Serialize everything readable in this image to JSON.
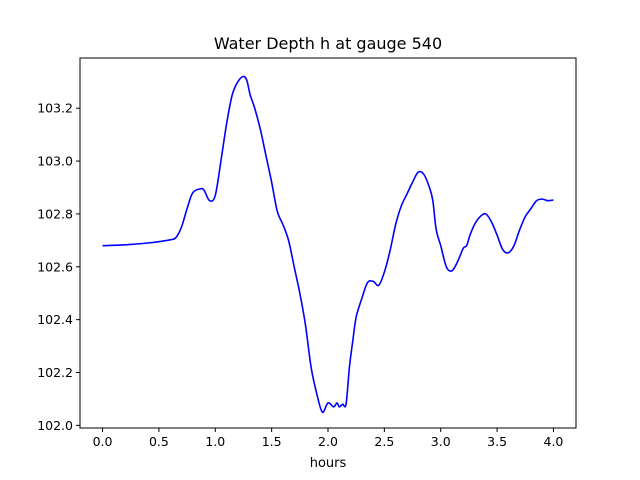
{
  "chart_data": {
    "type": "line",
    "title": "Water Depth h at gauge 540",
    "xlabel": "hours",
    "ylabel": "",
    "xlim": [
      -0.2,
      4.2
    ],
    "ylim": [
      101.99,
      103.39
    ],
    "xticks": [
      0.0,
      0.5,
      1.0,
      1.5,
      2.0,
      2.5,
      3.0,
      3.5,
      4.0
    ],
    "xtick_labels": [
      "0.0",
      "0.5",
      "1.0",
      "1.5",
      "2.0",
      "2.5",
      "3.0",
      "3.5",
      "4.0"
    ],
    "yticks": [
      102.0,
      102.2,
      102.4,
      102.6,
      102.8,
      103.0,
      103.2
    ],
    "ytick_labels": [
      "102.0",
      "102.2",
      "102.4",
      "102.6",
      "102.8",
      "103.0",
      "103.2"
    ],
    "grid": false,
    "legend": "none",
    "series": [
      {
        "color": "#0000ff",
        "x": [
          0.0,
          0.2,
          0.4,
          0.5,
          0.6,
          0.65,
          0.7,
          0.75,
          0.8,
          0.87,
          0.9,
          0.95,
          1.0,
          1.05,
          1.1,
          1.15,
          1.2,
          1.25,
          1.28,
          1.31,
          1.35,
          1.4,
          1.45,
          1.5,
          1.55,
          1.6,
          1.65,
          1.7,
          1.75,
          1.8,
          1.85,
          1.9,
          1.95,
          2.0,
          2.05,
          2.08,
          2.1,
          2.13,
          2.16,
          2.19,
          2.22,
          2.25,
          2.3,
          2.35,
          2.4,
          2.45,
          2.5,
          2.55,
          2.6,
          2.65,
          2.7,
          2.75,
          2.8,
          2.85,
          2.9,
          2.93,
          2.96,
          3.0,
          3.05,
          3.1,
          3.15,
          3.2,
          3.23,
          3.26,
          3.3,
          3.35,
          3.4,
          3.45,
          3.5,
          3.55,
          3.6,
          3.65,
          3.7,
          3.75,
          3.8,
          3.85,
          3.9,
          3.95,
          4.0
        ],
        "y": [
          102.68,
          102.683,
          102.69,
          102.695,
          102.702,
          102.71,
          102.75,
          102.82,
          102.88,
          102.895,
          102.89,
          102.85,
          102.87,
          103.0,
          103.14,
          103.25,
          103.3,
          103.32,
          103.305,
          103.25,
          103.2,
          103.12,
          103.02,
          102.92,
          102.81,
          102.76,
          102.7,
          102.6,
          102.5,
          102.38,
          102.22,
          102.12,
          102.05,
          102.085,
          102.07,
          102.085,
          102.07,
          102.08,
          102.08,
          102.22,
          102.32,
          102.41,
          102.48,
          102.54,
          102.545,
          102.53,
          102.58,
          102.66,
          102.76,
          102.83,
          102.875,
          102.92,
          102.958,
          102.95,
          102.9,
          102.85,
          102.74,
          102.68,
          102.6,
          102.585,
          102.62,
          102.67,
          102.68,
          102.72,
          102.76,
          102.79,
          102.8,
          102.77,
          102.72,
          102.665,
          102.653,
          102.68,
          102.74,
          102.79,
          102.82,
          102.85,
          102.856,
          102.85,
          102.853
        ]
      }
    ]
  }
}
